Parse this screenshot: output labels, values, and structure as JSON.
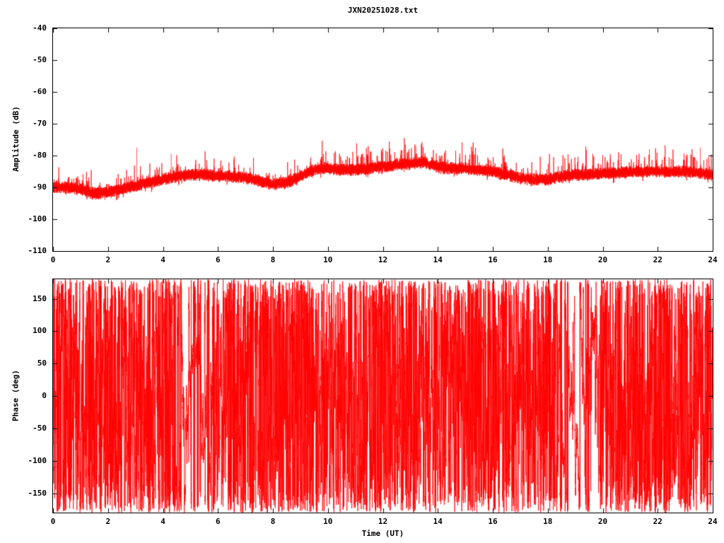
{
  "figure": {
    "background": "#ffffff",
    "axis_color": "#000000",
    "series_color": "#ff0000"
  },
  "chart_data": [
    {
      "type": "line",
      "title": "JXN20251028.txt",
      "ylabel": "Amplitude (dB)",
      "xlabel": "",
      "ylim": [
        -110,
        -40
      ],
      "xlim": [
        0,
        24
      ],
      "y_ticks": [
        -40,
        -50,
        -60,
        -70,
        -80,
        -90,
        -100,
        -110
      ],
      "x_ticks": [
        0,
        2,
        4,
        6,
        8,
        10,
        12,
        14,
        16,
        18,
        20,
        22,
        24
      ],
      "grid": false,
      "legend": "none",
      "series": [
        {
          "name": "amplitude",
          "color": "#ff0000",
          "style": "dense noisy line band",
          "envelope_x": [
            0,
            0.5,
            1,
            1.5,
            2,
            2.5,
            3,
            3.5,
            4,
            4.5,
            5,
            5.5,
            6,
            6.5,
            7,
            7.5,
            8,
            8.5,
            9,
            9.5,
            10,
            10.5,
            11,
            11.5,
            12,
            12.5,
            13,
            13.5,
            14,
            14.5,
            15,
            15.5,
            16,
            16.5,
            17,
            17.5,
            18,
            18.5,
            19,
            19.5,
            20,
            20.5,
            21,
            21.5,
            22,
            22.5,
            23,
            23.5,
            24
          ],
          "envelope_mean_db": [
            -90,
            -90,
            -90.5,
            -92,
            -91.5,
            -90.5,
            -89.5,
            -88.5,
            -87.5,
            -86.5,
            -86,
            -86,
            -86.5,
            -86.5,
            -87,
            -88,
            -89,
            -88.5,
            -86.5,
            -84.5,
            -84,
            -84.5,
            -84.5,
            -84,
            -83.5,
            -83,
            -82.5,
            -82,
            -83.5,
            -84,
            -84,
            -84.5,
            -85,
            -86,
            -87,
            -87.5,
            -87.5,
            -86.5,
            -86,
            -86,
            -85.5,
            -85.5,
            -85,
            -85,
            -85,
            -85,
            -85,
            -85.5,
            -86
          ],
          "noise_spread_db": 2.1,
          "spikes": [
            {
              "x": 3.05,
              "v": -77.5
            },
            {
              "x": 4.3,
              "v": -79.5
            },
            {
              "x": 13.2,
              "v": -77
            },
            {
              "x": 21.7,
              "v": -78
            },
            {
              "x": 23.55,
              "v": -77.5
            }
          ]
        }
      ]
    },
    {
      "type": "line",
      "title": "",
      "ylabel": "Phase (deg)",
      "xlabel": "Time (UT)",
      "ylim": [
        -180,
        180
      ],
      "xlim": [
        0,
        24
      ],
      "y_ticks": [
        150,
        100,
        50,
        0,
        -50,
        -100,
        -150
      ],
      "x_ticks": [
        0,
        2,
        4,
        6,
        8,
        10,
        12,
        14,
        16,
        18,
        20,
        22,
        24
      ],
      "grid": false,
      "legend": "none",
      "series": [
        {
          "name": "phase",
          "color": "#ff0000",
          "style": "wrapped noisy phase, near-full vertical coverage",
          "range_deg": [
            -180,
            180
          ]
        }
      ]
    }
  ]
}
